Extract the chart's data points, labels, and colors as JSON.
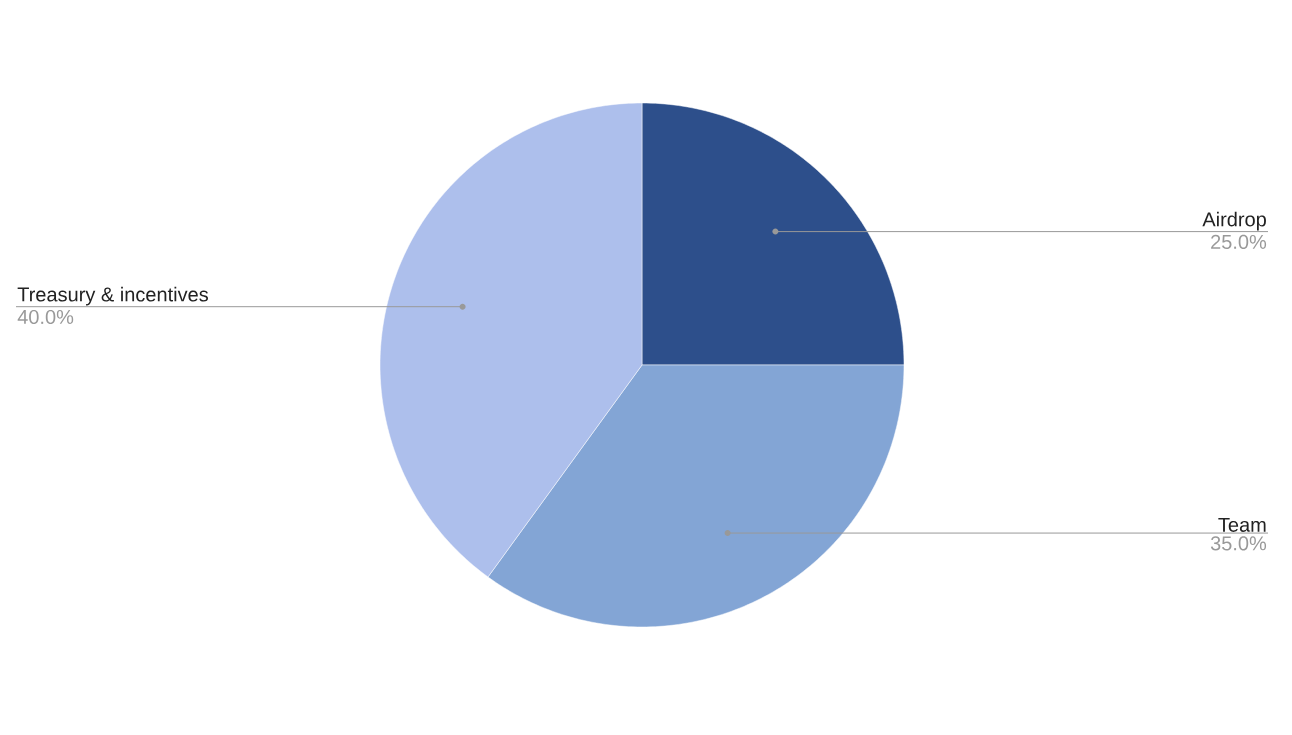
{
  "chart_data": {
    "type": "pie",
    "categories": [
      "Airdrop",
      "Team",
      "Treasury & incentives"
    ],
    "values": [
      25,
      35,
      40
    ],
    "value_labels": [
      "25.0%",
      "35.0%",
      "40.0%"
    ],
    "colors": [
      "#2d4f8b",
      "#83a5d5",
      "#adbfec"
    ]
  }
}
